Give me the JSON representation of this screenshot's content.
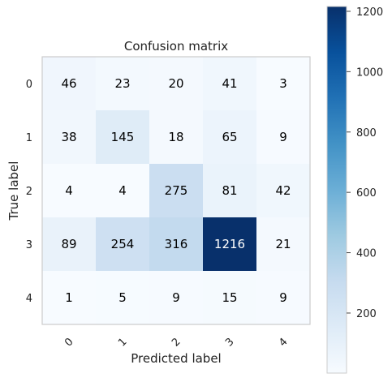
{
  "chart_data": {
    "type": "heatmap",
    "title": "Confusion matrix",
    "xlabel": "Predicted label",
    "ylabel": "True label",
    "x_categories": [
      "0",
      "1",
      "2",
      "3",
      "4"
    ],
    "y_categories": [
      "0",
      "1",
      "2",
      "3",
      "4"
    ],
    "values": [
      [
        46,
        23,
        20,
        41,
        3
      ],
      [
        38,
        145,
        18,
        65,
        9
      ],
      [
        4,
        4,
        275,
        81,
        42
      ],
      [
        89,
        254,
        316,
        1216,
        21
      ],
      [
        1,
        5,
        9,
        15,
        9
      ]
    ],
    "colormap": "Blues",
    "colorbar": {
      "range": [
        1,
        1216
      ],
      "ticks": [
        200,
        400,
        600,
        800,
        1000,
        1200
      ]
    },
    "grid": false
  }
}
